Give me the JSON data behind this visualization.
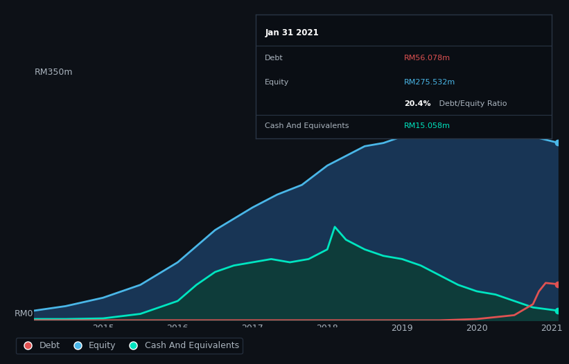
{
  "bg_color": "#0d1117",
  "plot_bg_color": "#0d1117",
  "title_label": "RM350m",
  "x_label_zero": "RM0",
  "x_ticks": [
    "2015",
    "2016",
    "2017",
    "2018",
    "2019",
    "2020",
    "2021"
  ],
  "tooltip": {
    "date": "Jan 31 2021",
    "debt_label": "Debt",
    "debt_value": "RM56.078m",
    "equity_label": "Equity",
    "equity_value": "RM275.532m",
    "ratio_label": "20.4% Debt/Equity Ratio",
    "cash_label": "Cash And Equivalents",
    "cash_value": "RM15.058m"
  },
  "legend": [
    {
      "label": "Debt",
      "color": "#e05252"
    },
    {
      "label": "Equity",
      "color": "#4ab7e8"
    },
    {
      "label": "Cash And Equivalents",
      "color": "#00e5c0"
    }
  ],
  "colors": {
    "debt": "#e05252",
    "equity": "#4ab7e8",
    "cash": "#00e5c0",
    "equity_fill": "#1a3a5c",
    "cash_fill": "#0d3d38",
    "grid": "#1e3050",
    "text": "#aab4be",
    "tooltip_bg": "#0a0e14",
    "tooltip_border": "#2a3545"
  },
  "equity_x": [
    2014.08,
    2014.5,
    2015.0,
    2015.5,
    2016.0,
    2016.5,
    2017.0,
    2017.33,
    2017.66,
    2018.0,
    2018.25,
    2018.5,
    2018.75,
    2019.0,
    2019.25,
    2019.5,
    2019.75,
    2020.0,
    2020.25,
    2020.5,
    2020.75,
    2021.08
  ],
  "equity_y": [
    15,
    22,
    35,
    55,
    90,
    140,
    175,
    195,
    210,
    240,
    255,
    270,
    275,
    285,
    295,
    300,
    305,
    305,
    302,
    295,
    285,
    275.532
  ],
  "cash_x": [
    2014.08,
    2014.5,
    2015.0,
    2015.5,
    2016.0,
    2016.25,
    2016.5,
    2016.75,
    2017.0,
    2017.25,
    2017.5,
    2017.75,
    2018.0,
    2018.1,
    2018.25,
    2018.5,
    2018.75,
    2019.0,
    2019.25,
    2019.5,
    2019.75,
    2020.0,
    2020.25,
    2020.5,
    2020.75,
    2021.08
  ],
  "cash_y": [
    2,
    2,
    3,
    10,
    30,
    55,
    75,
    85,
    90,
    95,
    90,
    95,
    110,
    145,
    125,
    110,
    100,
    95,
    85,
    70,
    55,
    45,
    40,
    30,
    20,
    15.058
  ],
  "debt_x": [
    2014.08,
    2015.0,
    2016.0,
    2017.0,
    2018.0,
    2018.5,
    2019.0,
    2019.5,
    2020.0,
    2020.5,
    2020.75,
    2020.83,
    2020.92,
    2021.08
  ],
  "debt_y": [
    0,
    0,
    0,
    0,
    0,
    0,
    0,
    0,
    2,
    8,
    25,
    45,
    58,
    56.078
  ],
  "ylim": [
    0,
    350
  ],
  "xlim": [
    2014.08,
    2021.08
  ]
}
